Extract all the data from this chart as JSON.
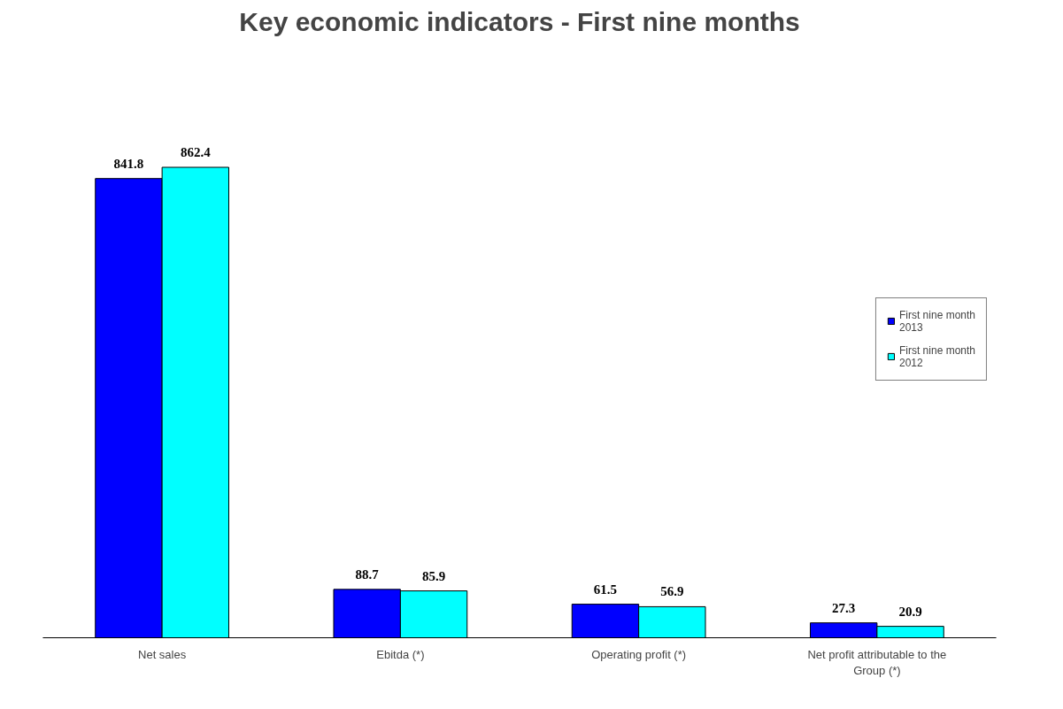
{
  "chart_data": {
    "type": "bar",
    "title": "Key economic indicators - First nine months",
    "categories": [
      "Net sales",
      "Ebitda (*)",
      "Operating profit (*)",
      "Net profit attributable to the Group (*)"
    ],
    "series": [
      {
        "name": "First nine month 2013",
        "color": "#0000ff",
        "values": [
          841.8,
          88.7,
          61.5,
          27.3
        ]
      },
      {
        "name": "First nine month 2012",
        "color": "#00ffff",
        "values": [
          862.4,
          85.9,
          56.9,
          20.9
        ]
      }
    ],
    "data_labels": true,
    "legend": "right",
    "grid": false
  }
}
